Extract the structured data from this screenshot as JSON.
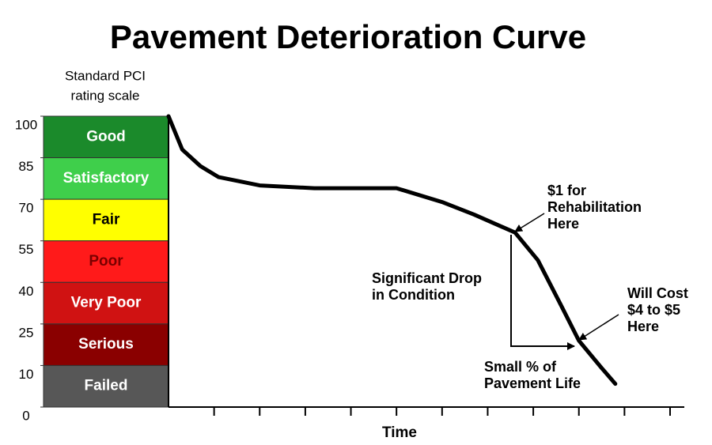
{
  "chart_data": {
    "type": "line",
    "title": "Pavement Deterioration Curve",
    "scale_title": [
      "Standard PCI",
      "rating scale"
    ],
    "x_label": "Time",
    "xlim": [
      0,
      11
    ],
    "xticks": [
      1,
      2,
      3,
      4,
      5,
      6,
      7,
      8,
      9,
      10,
      11
    ],
    "yticks": [
      100,
      85,
      70,
      55,
      40,
      25,
      10,
      0
    ],
    "bands": [
      {
        "name": "Good",
        "from": 85,
        "to": 100,
        "color": "#1b8a2b",
        "text_color": "#ffffff"
      },
      {
        "name": "Satisfactory",
        "from": 70,
        "to": 85,
        "color": "#3fcf4b",
        "text_color": "#ffffff"
      },
      {
        "name": "Fair",
        "from": 55,
        "to": 70,
        "color": "#ffff00",
        "text_color": "#000000"
      },
      {
        "name": "Poor",
        "from": 40,
        "to": 55,
        "color": "#ff1a1a",
        "text_color": "#7a0000"
      },
      {
        "name": "Very Poor",
        "from": 25,
        "to": 40,
        "color": "#d01212",
        "text_color": "#ffffff"
      },
      {
        "name": "Serious",
        "from": 10,
        "to": 25,
        "color": "#8a0000",
        "text_color": "#ffffff"
      },
      {
        "name": "Failed",
        "from": 0,
        "to": 10,
        "color": "#575757",
        "text_color": "#ffffff"
      }
    ],
    "x": [
      0,
      0.3,
      0.7,
      1.1,
      2.0,
      3.2,
      5.0,
      6.0,
      6.7,
      7.6,
      8.1,
      8.6,
      9.0,
      9.5,
      9.8
    ],
    "values": [
      100,
      88,
      82,
      78,
      75,
      74,
      74,
      69,
      64.5,
      58,
      48,
      32,
      19,
      9.4,
      5.6
    ],
    "color": "#000000",
    "annotations": [
      {
        "lines": [
          "$1 for",
          "Rehabilitation",
          "Here"
        ]
      },
      {
        "lines": [
          "Significant Drop",
          "in Condition"
        ]
      },
      {
        "lines": [
          "Will Cost",
          "$4 to $5",
          "Here"
        ]
      },
      {
        "lines": [
          "Small % of",
          "Pavement Life"
        ]
      }
    ]
  }
}
